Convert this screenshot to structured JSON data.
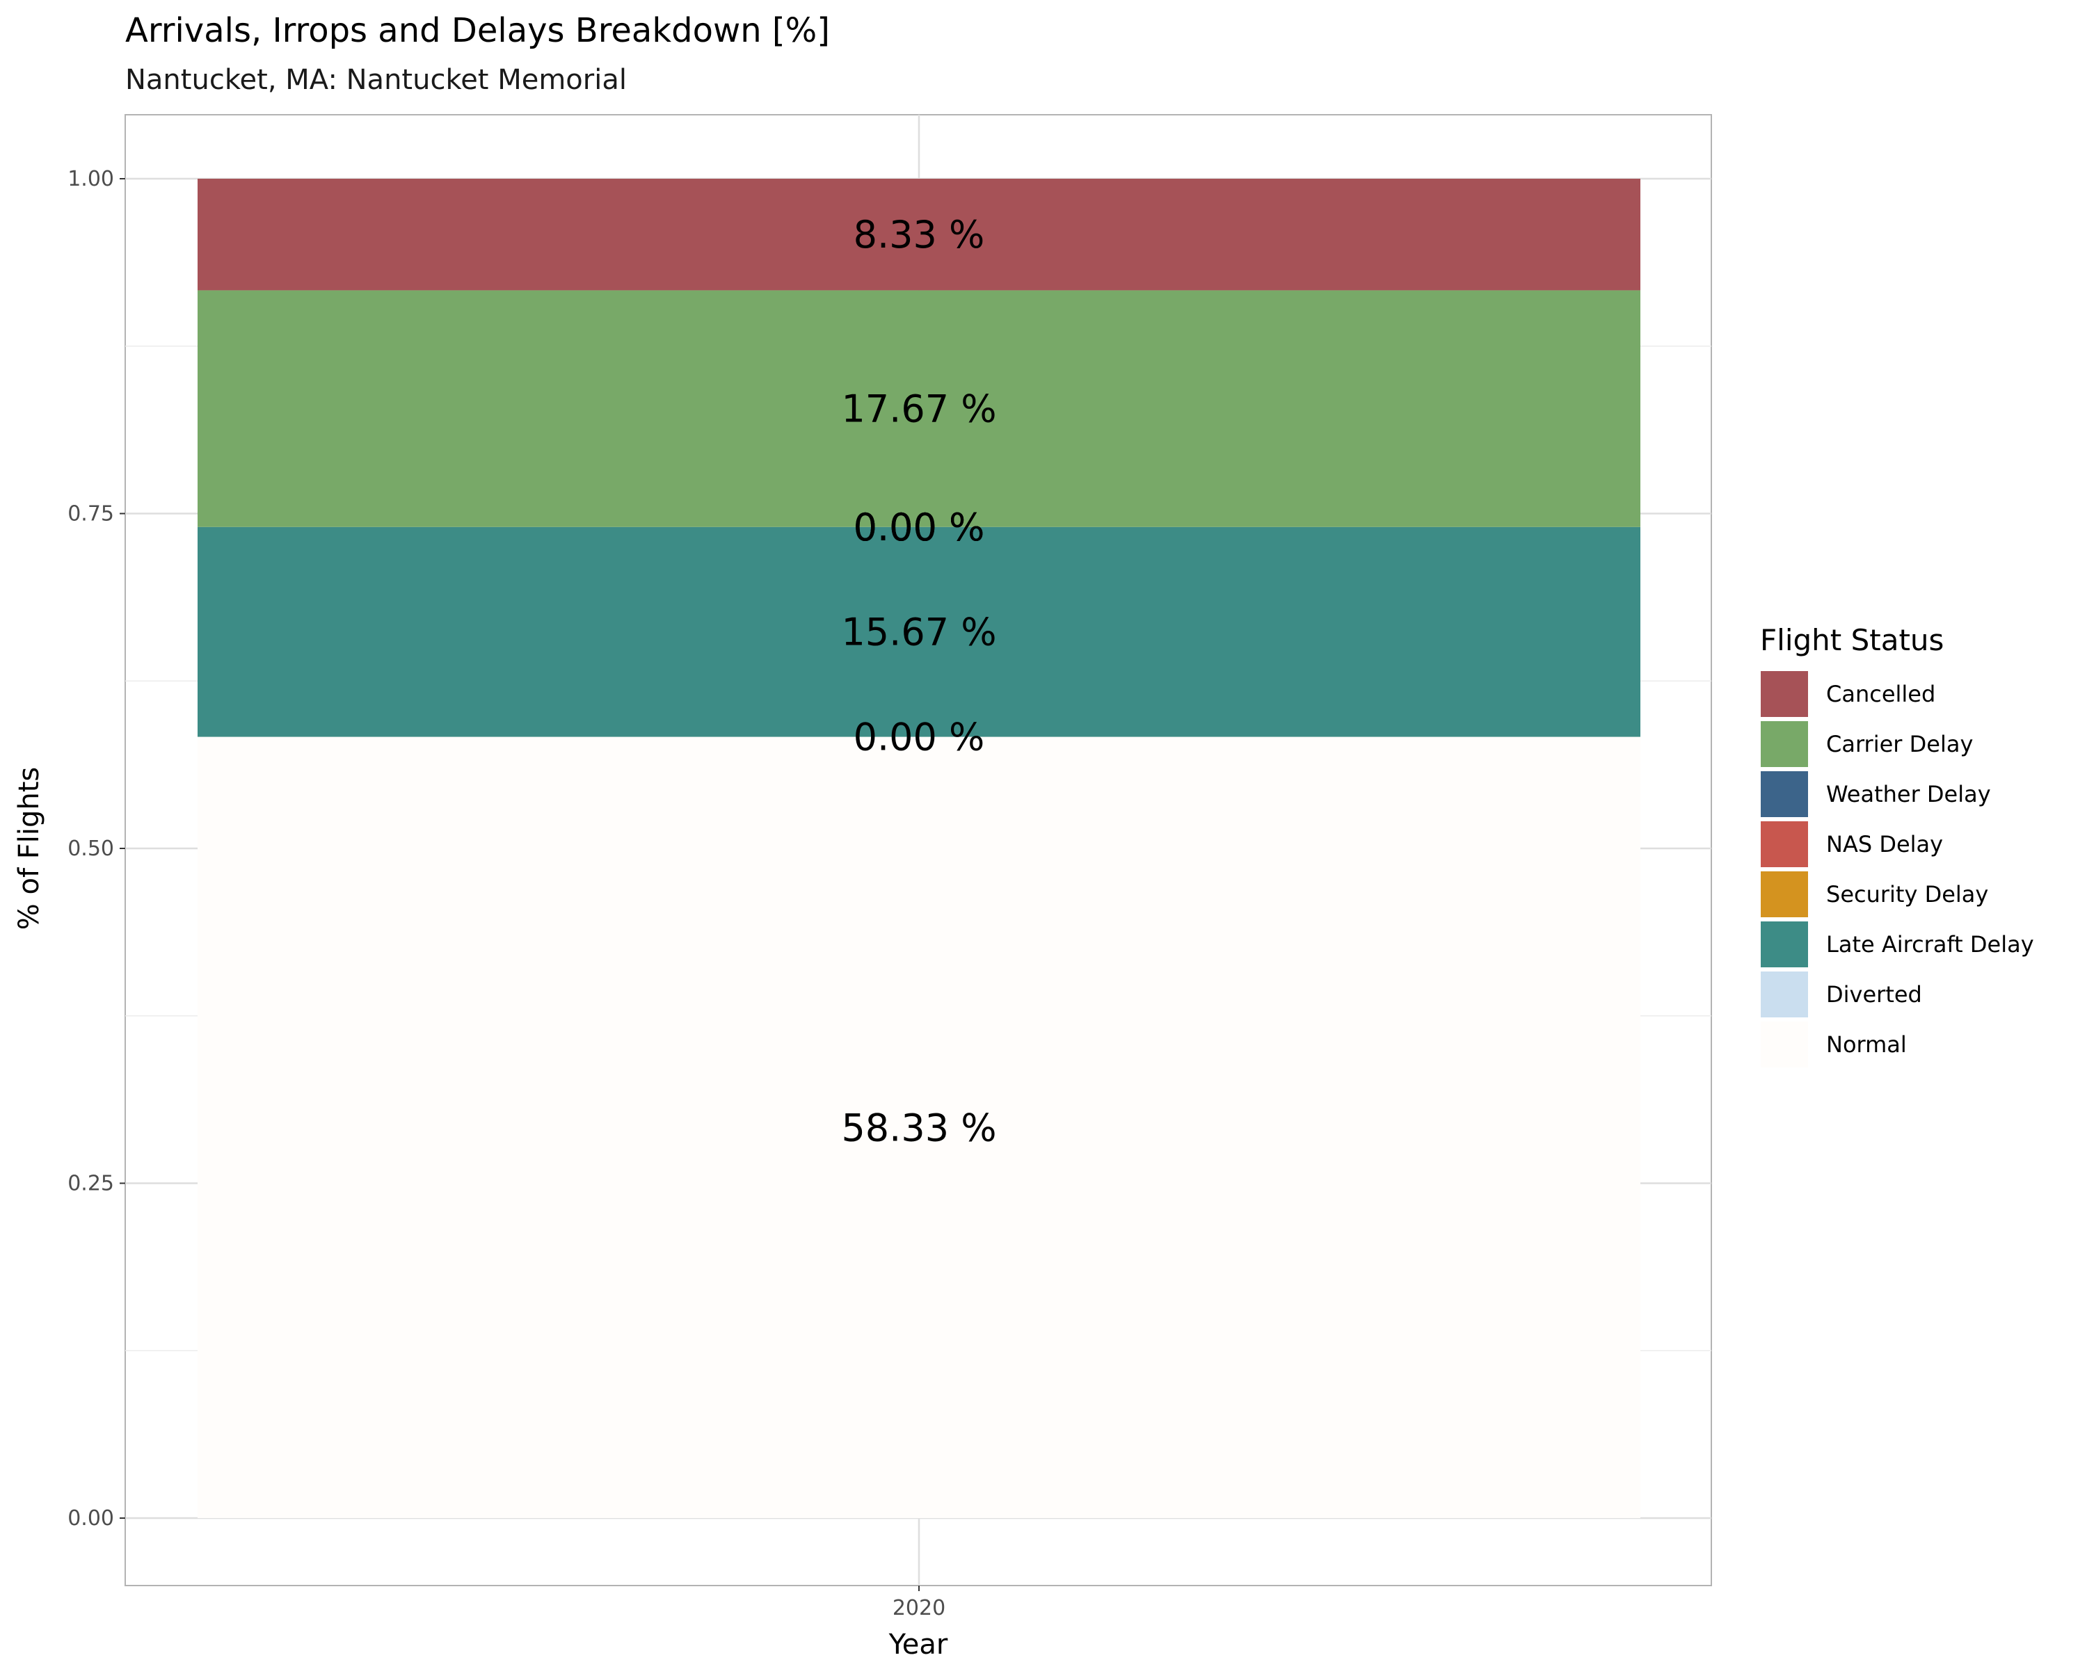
{
  "chart_data": {
    "type": "bar",
    "stacked": true,
    "title": "Arrivals, Irrops and Delays Breakdown [%]",
    "subtitle": "Nantucket, MA: Nantucket Memorial",
    "xlabel": "Year",
    "ylabel": "% of Flights",
    "categories": [
      "2020"
    ],
    "ylim": [
      0,
      1
    ],
    "yticks": [
      "0.00",
      "0.25",
      "0.50",
      "0.75",
      "1.00"
    ],
    "yticks_values": [
      0,
      0.25,
      0.5,
      0.75,
      1.0
    ],
    "legend_title": "Flight Status",
    "legend_position": "right",
    "series": [
      {
        "name": "Cancelled",
        "color": "#a65257",
        "values": [
          0.0833
        ],
        "label": "8.33 %"
      },
      {
        "name": "Carrier Delay",
        "color": "#78a968",
        "values": [
          0.1767
        ],
        "label": "17.67 %"
      },
      {
        "name": "Weather Delay",
        "color": "#3c648a",
        "values": [
          0.0
        ],
        "label": "0.00 %"
      },
      {
        "name": "NAS Delay",
        "color": "#c8574e",
        "values": [
          0.0
        ],
        "label": "0.00 %"
      },
      {
        "name": "Security Delay",
        "color": "#d4931f",
        "values": [
          0.0
        ],
        "label": "0.00 %"
      },
      {
        "name": "Late Aircraft Delay",
        "color": "#3d8c86",
        "values": [
          0.1567
        ],
        "label": "15.67 %"
      },
      {
        "name": "Diverted",
        "color": "#cadeef",
        "values": [
          0.0
        ],
        "label": "0.00 %"
      },
      {
        "name": "Normal",
        "color": "#fffdfb",
        "values": [
          0.5833
        ],
        "label": "58.33 %"
      }
    ]
  }
}
